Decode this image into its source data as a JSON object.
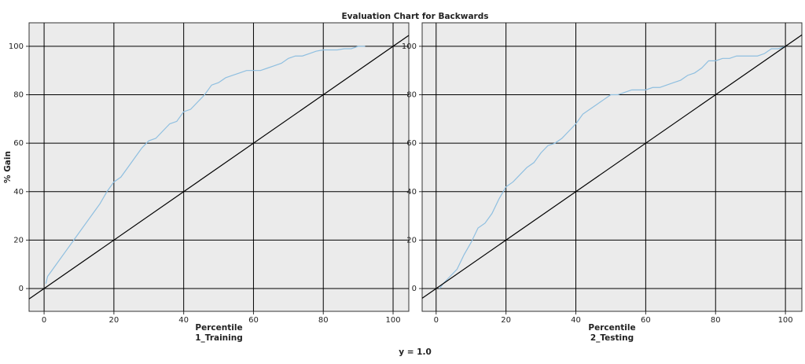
{
  "title": "Evaluation Chart for Backwards",
  "note": "y = 1.0",
  "chart_data": [
    {
      "type": "line",
      "ylabel": "% Gain",
      "xlabel": "Percentile",
      "panel_label": "1_Training",
      "xlim": [
        -4.3,
        104.5
      ],
      "ylim": [
        -9.4,
        109.7
      ],
      "xticks": [
        0,
        20,
        40,
        60,
        80,
        100
      ],
      "yticks": [
        0,
        20,
        40,
        60,
        80,
        100
      ],
      "grid": true,
      "series": [
        {
          "color": "#8fbfe0",
          "x": [
            0.5,
            1,
            2,
            4,
            6,
            8,
            10,
            12,
            14,
            16,
            18,
            20,
            22,
            24,
            26,
            28,
            30,
            32,
            34,
            36,
            38,
            40,
            42,
            44,
            46,
            48,
            50,
            52,
            54,
            56,
            58,
            60,
            62,
            64,
            66,
            68,
            70,
            72,
            74,
            76,
            78,
            80,
            82,
            84,
            86,
            88,
            90,
            92
          ],
          "values": [
            2,
            5,
            7,
            11,
            15,
            19,
            23,
            27,
            31,
            35,
            40,
            44,
            46,
            50,
            54,
            58,
            61,
            62,
            65,
            68,
            69,
            73,
            74,
            77,
            80,
            84,
            85,
            87,
            88,
            89,
            90,
            90,
            90,
            91,
            92,
            93,
            95,
            96,
            96,
            97,
            98,
            98.5,
            98.5,
            98.5,
            99,
            99,
            100,
            100
          ]
        },
        {
          "color": "#000000",
          "x": [
            -4.3,
            104.5
          ],
          "values": [
            -4.3,
            104.5
          ]
        }
      ]
    },
    {
      "type": "line",
      "xlabel": "Percentile",
      "panel_label": "2_Testing",
      "xlim": [
        -4,
        104.7
      ],
      "ylim": [
        -9.4,
        109.7
      ],
      "xticks": [
        0,
        20,
        40,
        60,
        80,
        100
      ],
      "yticks": [
        0,
        20,
        40,
        60,
        80,
        100
      ],
      "grid": true,
      "series": [
        {
          "color": "#8fbfe0",
          "x": [
            1,
            2,
            4,
            6,
            8,
            10,
            12,
            14,
            16,
            18,
            20,
            22,
            24,
            26,
            28,
            30,
            32,
            34,
            36,
            38,
            40,
            42,
            44,
            46,
            48,
            50,
            52,
            54,
            56,
            58,
            60,
            62,
            64,
            66,
            68,
            70,
            72,
            74,
            76,
            78,
            80,
            82,
            84,
            86,
            88,
            90,
            92,
            94,
            96,
            98,
            100
          ],
          "values": [
            0,
            2,
            5,
            8,
            14,
            19,
            25,
            27,
            31,
            37,
            42,
            44,
            47,
            50,
            52,
            56,
            59,
            60,
            62,
            65,
            68,
            72,
            74,
            76,
            78,
            80,
            80,
            81,
            82,
            82,
            82,
            83,
            83,
            84,
            85,
            86,
            88,
            89,
            91,
            94,
            94,
            95,
            95,
            96,
            96,
            96,
            96,
            97,
            99,
            99,
            100
          ]
        },
        {
          "color": "#000000",
          "x": [
            -4,
            104.7
          ],
          "values": [
            -4,
            104.7
          ]
        }
      ]
    }
  ]
}
